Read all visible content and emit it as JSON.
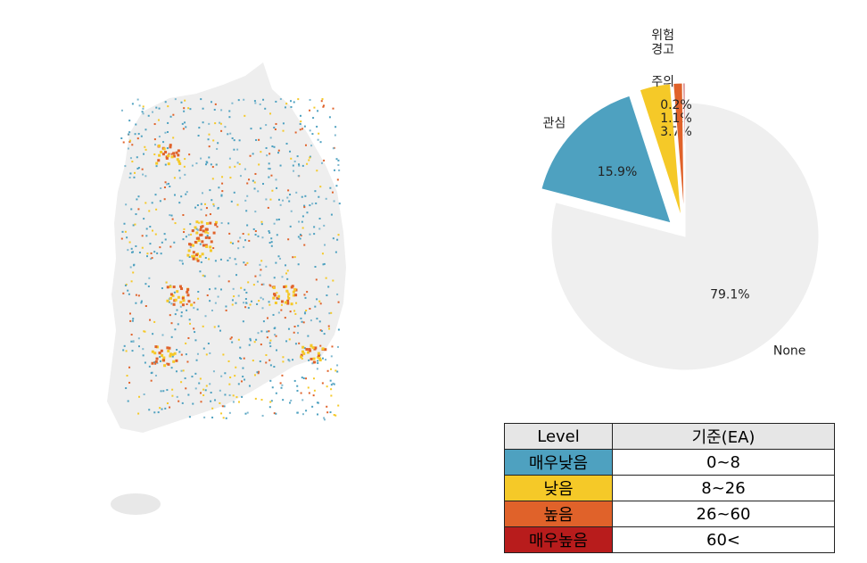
{
  "chart_data": {
    "type": "pie",
    "categories": [
      "None",
      "관심",
      "주의",
      "경고",
      "위험"
    ],
    "values": [
      79.1,
      15.9,
      3.7,
      1.1,
      0.2
    ],
    "value_labels": [
      "79.1%",
      "15.9%",
      "3.7%",
      "1.1%",
      "0.2%"
    ],
    "colors": [
      "#efefef",
      "#4ea1c0",
      "#f5c928",
      "#e0622a",
      "#b81c1c"
    ]
  },
  "table": {
    "header": [
      "Level",
      "기준(EA)"
    ],
    "rows": [
      [
        "매우낮음",
        "0~8"
      ],
      [
        "낮음",
        "8~26"
      ],
      [
        "높음",
        "26~60"
      ],
      [
        "매우높음",
        "60<"
      ]
    ],
    "row_colors": [
      "#4ea1c0",
      "#f5c928",
      "#e0622a",
      "#b81c1c"
    ]
  }
}
